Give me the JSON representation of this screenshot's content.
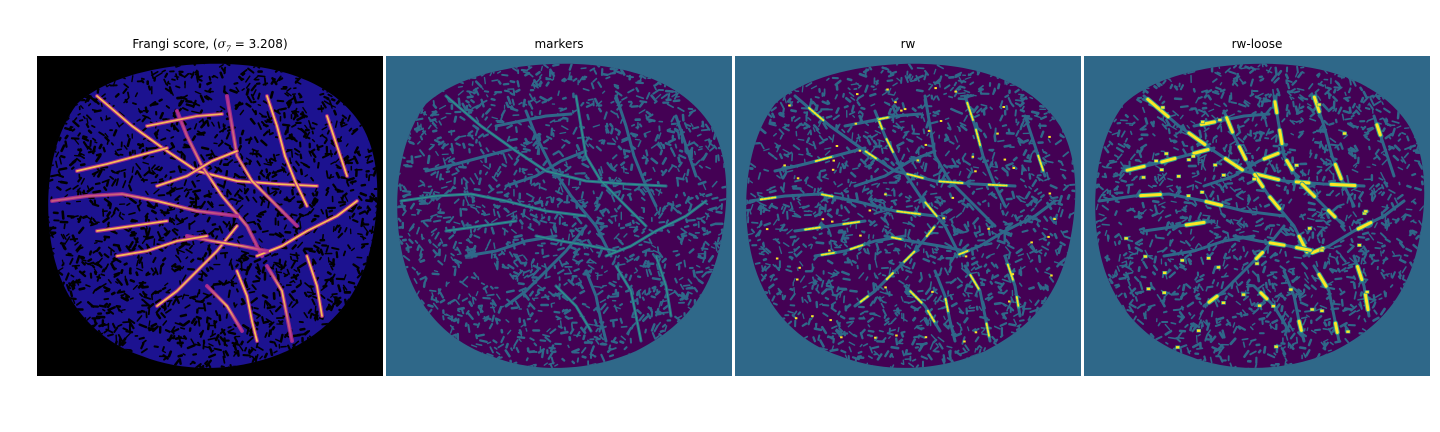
{
  "figure": {
    "panels": [
      {
        "title_prefix": "Frangi score, (",
        "title_symbol": "σ",
        "title_subscript": "7",
        "title_suffix": " = 3.208)",
        "content": "frangi-vesselness-heatmap"
      },
      {
        "title": "markers",
        "content": "marker-segmentation-map"
      },
      {
        "title": "rw",
        "content": "random-walker-segmentation"
      },
      {
        "title": "rw-loose",
        "content": "random-walker-loose-segmentation"
      }
    ],
    "colors": {
      "frangi_background": "#000000",
      "frangi_low": "#1c1290",
      "frangi_mid": "#b12d8f",
      "frangi_high": "#fbbe55",
      "label_background": "#2f6889",
      "label_tissue": "#440154",
      "label_vessel_marker": "#2fa08c",
      "label_vessel_fill": "#fde725"
    }
  }
}
